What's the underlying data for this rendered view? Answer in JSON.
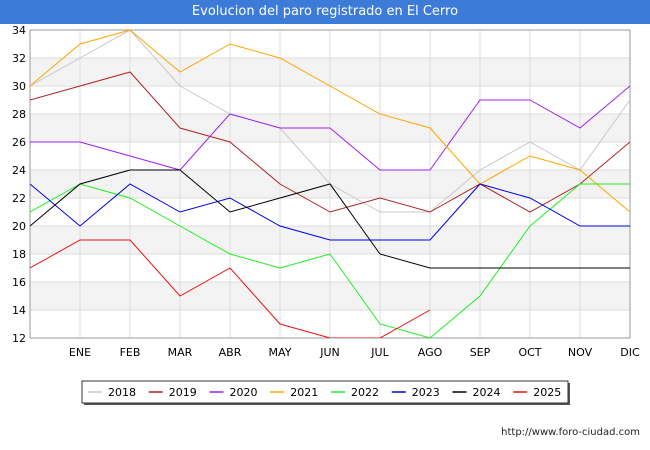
{
  "title": "Evolucion del paro registrado en El Cerro",
  "footer": "http://www.foro-ciudad.com",
  "chart_data": {
    "type": "line",
    "title": "Evolucion del paro registrado en El Cerro",
    "categories": [
      "",
      "ENE",
      "FEB",
      "MAR",
      "ABR",
      "MAY",
      "JUN",
      "JUL",
      "AGO",
      "SEP",
      "OCT",
      "NOV",
      "DIC"
    ],
    "ylim": [
      12,
      34
    ],
    "yticks": [
      12,
      14,
      16,
      18,
      20,
      22,
      24,
      26,
      28,
      30,
      32,
      34
    ],
    "grid": true,
    "legend_position": "bottom",
    "series": [
      {
        "name": "2018",
        "color": "#c8c8c8",
        "values": [
          30,
          32,
          34,
          30,
          28,
          27,
          23,
          21,
          21,
          24,
          26,
          24,
          29
        ]
      },
      {
        "name": "2019",
        "color": "#b22222",
        "values": [
          29,
          30,
          31,
          27,
          26,
          23,
          21,
          22,
          21,
          23,
          21,
          23,
          26
        ]
      },
      {
        "name": "2020",
        "color": "#a020f0",
        "values": [
          26,
          26,
          25,
          24,
          28,
          27,
          27,
          24,
          24,
          29,
          29,
          27,
          30
        ]
      },
      {
        "name": "2021",
        "color": "#ffa500",
        "values": [
          30,
          33,
          34,
          31,
          33,
          32,
          30,
          28,
          27,
          23,
          25,
          24,
          21
        ]
      },
      {
        "name": "2022",
        "color": "#22ee22",
        "values": [
          21,
          23,
          22,
          20,
          18,
          17,
          18,
          13,
          12,
          15,
          20,
          23,
          23
        ]
      },
      {
        "name": "2023",
        "color": "#0000ee",
        "values": [
          23,
          20,
          23,
          21,
          22,
          20,
          19,
          19,
          19,
          23,
          22,
          20,
          20
        ]
      },
      {
        "name": "2024",
        "color": "#000000",
        "values": [
          20,
          23,
          24,
          24,
          21,
          22,
          23,
          18,
          17,
          17,
          17,
          17,
          17
        ]
      },
      {
        "name": "2025",
        "color": "#ee1111",
        "values": [
          17,
          19,
          19,
          15,
          17,
          13,
          12,
          12,
          14,
          null,
          null,
          null,
          null
        ]
      }
    ]
  }
}
